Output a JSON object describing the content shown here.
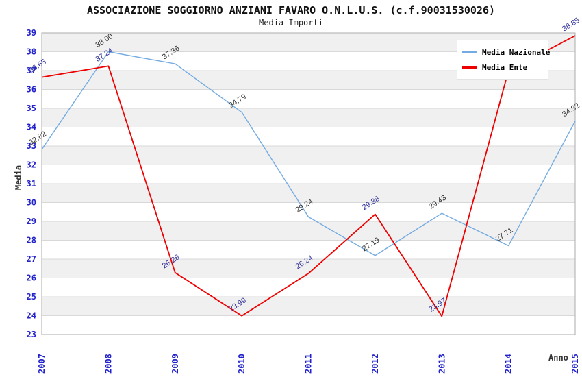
{
  "title": "ASSOCIAZIONE SOGGIORNO ANZIANI FAVARO O.N.L.U.S. (c.f.90031530026)",
  "subtitle": "Media Importi",
  "axes": {
    "x_title": "Anno",
    "y_title": "Media"
  },
  "colors": {
    "axis_tick_text": "#2222cc",
    "band_fill": "#f0f0f0",
    "grid_line": "#d8d8d8",
    "plot_border": "#ababab",
    "nazionale_line": "#74abe2",
    "ente_line": "#ee0000",
    "nazionale_label_text": "#333333",
    "ente_label_text": "#333399"
  },
  "chart_data": {
    "type": "line",
    "title": "Media Importi",
    "xlabel": "Anno",
    "ylabel": "Media",
    "ylim": [
      23,
      39
    ],
    "grid": true,
    "band_fill": true,
    "legend_position": "top-right",
    "x_categories": [
      "2007",
      "2008",
      "2009",
      "2010",
      "2011",
      "2012",
      "2013",
      "2014",
      "2015"
    ],
    "y_tick_labels": [
      "39",
      "38",
      "37",
      "36",
      "35",
      "34",
      "33",
      "32",
      "31",
      "30",
      "29",
      "28",
      "27",
      "26",
      "25",
      "24",
      "23"
    ],
    "series": [
      {
        "name": "Media Nazionale",
        "color": "#74abe2",
        "label_color": "#333333",
        "values": [
          32.82,
          38.0,
          37.36,
          34.79,
          29.24,
          27.19,
          29.43,
          27.71,
          34.32
        ],
        "labels": [
          "32.82",
          "38.00",
          "37.36",
          "34.79",
          "29.24",
          "27.19",
          "29.43",
          "27.71",
          "34.32"
        ]
      },
      {
        "name": "Media Ente",
        "color": "#ee0000",
        "label_color": "#333399",
        "values": [
          36.65,
          37.24,
          26.28,
          23.99,
          26.24,
          29.38,
          23.97,
          37.0,
          38.85
        ],
        "labels": [
          "36.65",
          "37.24",
          "26.28",
          "23.99",
          "26.24",
          "29.38",
          "23.97",
          null,
          "38.85"
        ]
      }
    ]
  }
}
